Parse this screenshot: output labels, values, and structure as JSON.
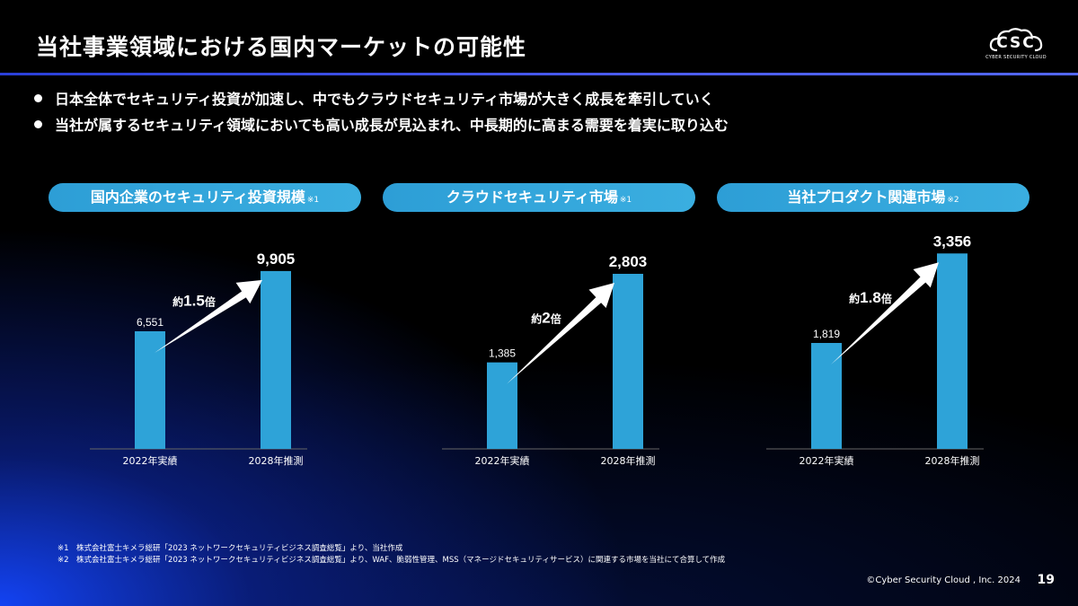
{
  "header": {
    "title": "当社事業領域における国内マーケットの可能性",
    "logo": {
      "text": "CSC",
      "subtext": "CYBER SECURITY CLOUD"
    }
  },
  "bullets": [
    "日本全体でセキュリティ投資が加速し、中でもクラウドセキュリティ市場が大きく成長を牽引していく",
    "当社が属するセキュリティ領域においても高い成長が見込まれ、中長期的に高まる需要を着実に取り込む"
  ],
  "chart_data": [
    {
      "type": "bar",
      "title": "国内企業のセキュリティ投資規模",
      "note": "※1",
      "categories": [
        "2022年実績",
        "2028年推測"
      ],
      "values": [
        6551,
        9905
      ],
      "labels": [
        "6,551",
        "9,905"
      ],
      "growth": {
        "prefix": "約",
        "value": "1.5",
        "suffix": "倍"
      },
      "ylim": [
        0,
        12000
      ]
    },
    {
      "type": "bar",
      "title": "クラウドセキュリティ市場",
      "note": "※1",
      "categories": [
        "2022年実績",
        "2028年推測"
      ],
      "values": [
        1385,
        2803
      ],
      "labels": [
        "1,385",
        "2,803"
      ],
      "growth": {
        "prefix": "約",
        "value": "2",
        "suffix": "倍"
      },
      "ylim": [
        0,
        3450
      ]
    },
    {
      "type": "bar",
      "title": "当社プロダクト関連市場",
      "note": "※2",
      "categories": [
        "2022年実績",
        "2028年推測"
      ],
      "values": [
        1819,
        3356
      ],
      "labels": [
        "1,819",
        "3,356"
      ],
      "growth": {
        "prefix": "約",
        "value": "1.8",
        "suffix": "倍"
      },
      "ylim": [
        0,
        3700
      ]
    }
  ],
  "footnotes": [
    "※1　株式会社富士キメラ総研「2023 ネットワークセキュリティビジネス調査総覧」より、当社作成",
    "※2　株式会社富士キメラ総研「2023 ネットワークセキュリティビジネス調査総覧」より、WAF、脆弱性管理、MSS（マネージドセキュリティサービス）に関連する市場を当社にて合算して作成"
  ],
  "footer": {
    "copyright": "©Cyber Security Cloud , Inc. 2024",
    "page_number": "19"
  },
  "colors": {
    "bar": "#2ea3d8",
    "axis": "#666666",
    "arrow": "#ffffff"
  }
}
